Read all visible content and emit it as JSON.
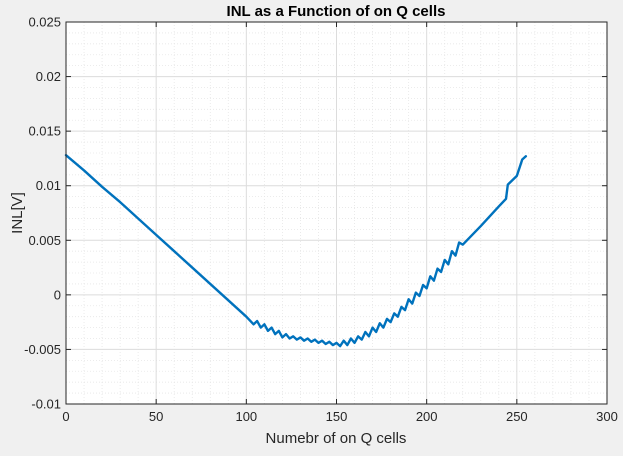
{
  "chart_data": {
    "type": "line",
    "title": "INL as a Function of on Q cells",
    "xlabel": "Numebr of on Q cells",
    "ylabel": "INL[V]",
    "xlim": [
      0,
      300
    ],
    "ylim": [
      -0.01,
      0.025
    ],
    "xticks": [
      0,
      50,
      100,
      150,
      200,
      250,
      300
    ],
    "xtick_labels": [
      "0",
      "50",
      "100",
      "150",
      "200",
      "250",
      "300"
    ],
    "yticks": [
      -0.01,
      -0.005,
      0,
      0.005,
      0.01,
      0.015,
      0.02,
      0.025
    ],
    "ytick_labels": [
      "-0.01",
      "-0.005",
      "0",
      "0.005",
      "0.01",
      "0.015",
      "0.02",
      "0.025"
    ],
    "grid": true,
    "minor_grid": true,
    "series": [
      {
        "color": "#0072bd",
        "x": [
          0,
          10,
          20,
          30,
          40,
          50,
          60,
          70,
          80,
          90,
          100,
          104,
          106,
          108,
          110,
          112,
          114,
          116,
          118,
          120,
          122,
          124,
          126,
          128,
          130,
          132,
          134,
          136,
          138,
          140,
          142,
          144,
          146,
          148,
          150,
          152,
          154,
          156,
          158,
          160,
          162,
          164,
          166,
          168,
          170,
          172,
          174,
          176,
          178,
          180,
          182,
          184,
          186,
          188,
          190,
          192,
          194,
          196,
          198,
          200,
          202,
          204,
          206,
          208,
          210,
          212,
          214,
          216,
          218,
          220,
          230,
          240,
          244,
          245,
          250,
          252,
          253,
          255
        ],
        "y": [
          0.0128,
          0.0114,
          0.0099,
          0.0085,
          0.007,
          0.0055,
          0.004,
          0.0025,
          0.001,
          -0.0005,
          -0.002,
          -0.0027,
          -0.0024,
          -0.003,
          -0.0027,
          -0.0033,
          -0.003,
          -0.0036,
          -0.0033,
          -0.0039,
          -0.0036,
          -0.004,
          -0.0038,
          -0.0041,
          -0.0039,
          -0.0042,
          -0.004,
          -0.0043,
          -0.0041,
          -0.0044,
          -0.0042,
          -0.0045,
          -0.0043,
          -0.0046,
          -0.0044,
          -0.0047,
          -0.0042,
          -0.0046,
          -0.004,
          -0.0044,
          -0.0038,
          -0.0041,
          -0.0034,
          -0.0038,
          -0.003,
          -0.0034,
          -0.0026,
          -0.003,
          -0.0022,
          -0.0025,
          -0.0017,
          -0.002,
          -0.0011,
          -0.0014,
          -0.0004,
          -0.0008,
          0.0002,
          -0.0001,
          0.0009,
          0.0006,
          0.0017,
          0.0013,
          0.0024,
          0.0021,
          0.0032,
          0.0028,
          0.004,
          0.0036,
          0.0048,
          0.0046,
          0.0063,
          0.0081,
          0.0088,
          0.0101,
          0.0109,
          0.0119,
          0.0124,
          0.0127
        ]
      }
    ]
  }
}
